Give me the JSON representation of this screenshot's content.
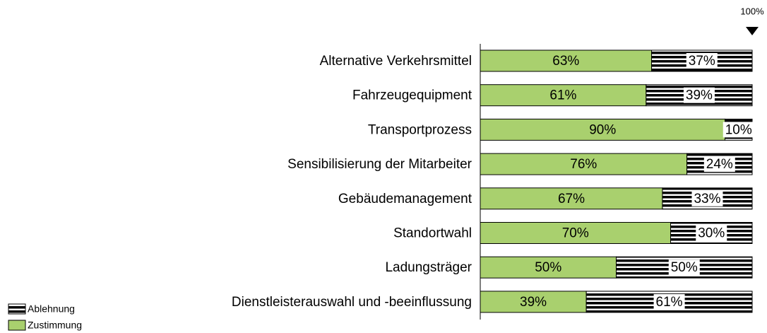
{
  "chart_data": {
    "type": "stacked-bar-horizontal",
    "categories": [
      "Alternative Verkehrsmittel",
      "Fahrzeugequipment",
      "Transportprozess",
      "Sensibilisierung der Mitarbeiter",
      "Gebäudemanagement",
      "Standortwahl",
      "Ladungsträger",
      "Dienstleisterauswahl und -beeinflussung"
    ],
    "series": [
      {
        "name": "Zustimmung",
        "color": "#a9d06e",
        "values": [
          63,
          61,
          90,
          76,
          67,
          70,
          50,
          39
        ],
        "value_labels": [
          "63%",
          "61%",
          "90%",
          "76%",
          "67%",
          "70%",
          "50%",
          "39%"
        ]
      },
      {
        "name": "Ablehnung",
        "color": "#000000",
        "pattern": "horizontal-stripes",
        "values": [
          37,
          39,
          10,
          24,
          33,
          30,
          50,
          61
        ],
        "value_labels": [
          "37%",
          "39%",
          "10%",
          "24%",
          "33%",
          "30%",
          "50%",
          "61%"
        ]
      }
    ],
    "xlim": [
      0,
      100
    ],
    "annotation": {
      "value": 100,
      "label": "100%"
    },
    "legend": "bottom-left"
  }
}
